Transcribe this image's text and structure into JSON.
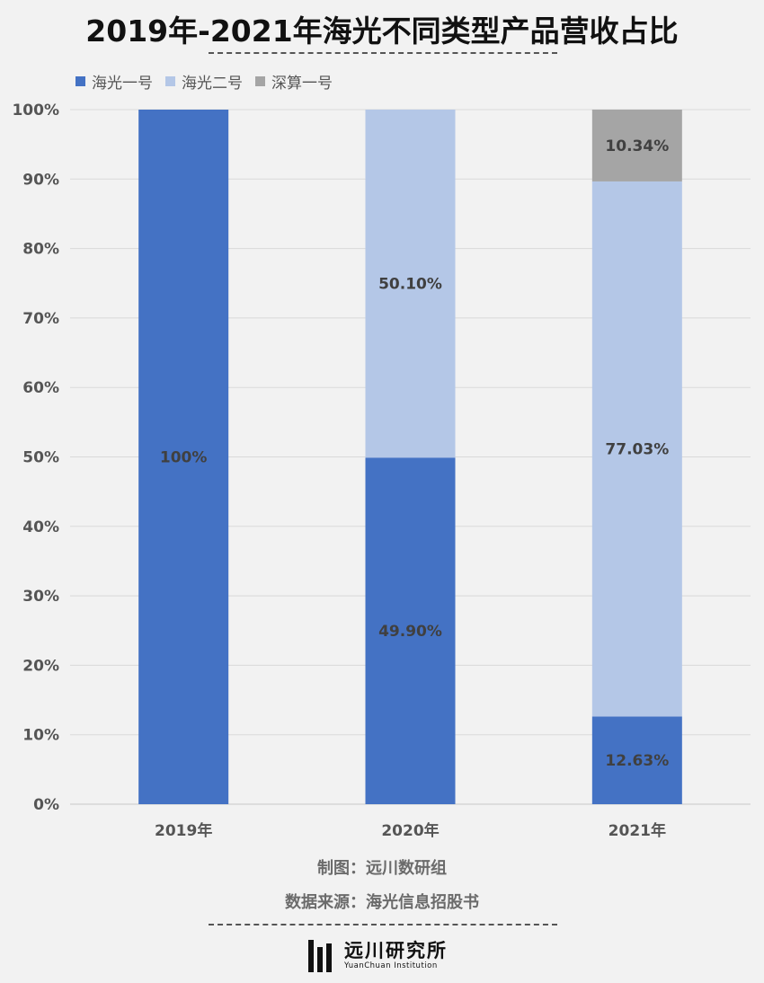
{
  "chart_data": {
    "type": "bar",
    "stacked": true,
    "title": "2019年-2021年海光不同类型产品营收占比",
    "categories": [
      "2019年",
      "2020年",
      "2021年"
    ],
    "series": [
      {
        "name": "海光一号",
        "color": "#4472c4",
        "values": [
          100,
          49.9,
          12.63
        ],
        "labels": [
          "100%",
          "49.90%",
          "12.63%"
        ]
      },
      {
        "name": "海光二号",
        "color": "#b4c7e7",
        "values": [
          0,
          50.1,
          77.03
        ],
        "labels": [
          "",
          "50.10%",
          "77.03%"
        ]
      },
      {
        "name": "深算一号",
        "color": "#a5a5a5",
        "values": [
          0,
          0,
          10.34
        ],
        "labels": [
          "",
          "",
          "10.34%"
        ]
      }
    ],
    "yticks": [
      "0%",
      "10%",
      "20%",
      "30%",
      "40%",
      "50%",
      "60%",
      "70%",
      "80%",
      "90%",
      "100%"
    ],
    "ylim": [
      0,
      100
    ],
    "legend_position": "top-left",
    "grid": true
  },
  "credits": {
    "maker": "制图：远川数研组",
    "source": "数据来源：海光信息招股书"
  },
  "logo": {
    "name_cn": "远川研究所",
    "name_en": "YuanChuan Institution"
  }
}
